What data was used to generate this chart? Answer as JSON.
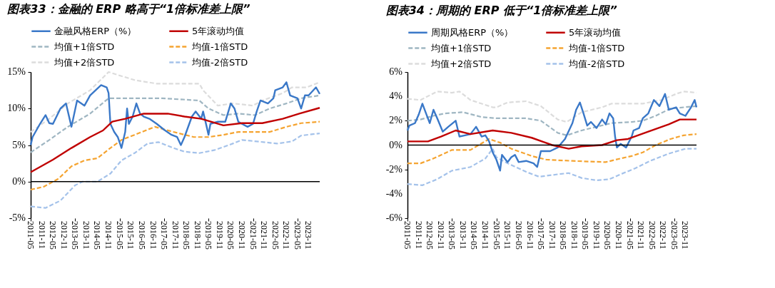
{
  "chart_data": [
    {
      "type": "line",
      "title": "图表33：金融的 ERP 略高于“1倍标准差上限”",
      "legend": "top",
      "grid": false,
      "xlim": [
        "2011-05",
        "2024-05"
      ],
      "xticks": [
        "2011-05",
        "2011-11",
        "2012-05",
        "2012-11",
        "2013-05",
        "2013-11",
        "2014-05",
        "2014-11",
        "2015-05",
        "2015-11",
        "2016-05",
        "2016-11",
        "2017-05",
        "2017-11",
        "2018-05",
        "2018-11",
        "2019-05",
        "2019-11",
        "2020-05",
        "2020-11",
        "2021-05",
        "2021-11",
        "2022-05",
        "2022-11",
        "2023-05",
        "2023-11"
      ],
      "ylim": [
        -5,
        15
      ],
      "yticks": [
        {
          "value": -5,
          "label": "-5%"
        },
        {
          "value": 0,
          "label": "0%"
        },
        {
          "value": 5,
          "label": "5%"
        },
        {
          "value": 10,
          "label": "10%"
        },
        {
          "value": 15,
          "label": "15%"
        }
      ],
      "ref_lines": [
        {
          "axis": "y",
          "value": 0,
          "color": "#000000"
        }
      ],
      "series": [
        {
          "name": "金融风格ERP（%）",
          "color": "#3a78c8",
          "line_style": "solid",
          "x": [
            "2011-05",
            "2011-06",
            "2011-10",
            "2012-01",
            "2012-03",
            "2012-05",
            "2012-09",
            "2012-12",
            "2013-03",
            "2013-06",
            "2013-10",
            "2014-01",
            "2014-04",
            "2014-07",
            "2014-10",
            "2014-11",
            "2014-12",
            "2015-02",
            "2015-04",
            "2015-06",
            "2015-08",
            "2015-09",
            "2015-10",
            "2015-12",
            "2016-02",
            "2016-04",
            "2016-06",
            "2016-09",
            "2017-01",
            "2017-05",
            "2017-09",
            "2017-12",
            "2018-02",
            "2018-04",
            "2018-08",
            "2018-10",
            "2019-01",
            "2019-02",
            "2019-04",
            "2019-05",
            "2019-06",
            "2019-10",
            "2020-02",
            "2020-05",
            "2020-07",
            "2020-09",
            "2020-11",
            "2021-02",
            "2021-05",
            "2021-07",
            "2021-09",
            "2022-01",
            "2022-04",
            "2022-05",
            "2022-09",
            "2022-11",
            "2023-01",
            "2023-05",
            "2023-07",
            "2023-09",
            "2023-11",
            "2024-03",
            "2024-05"
          ],
          "values": [
            5.0,
            6.1,
            7.9,
            9.1,
            8.0,
            7.9,
            10.0,
            10.7,
            7.5,
            11.1,
            10.4,
            11.8,
            12.5,
            13.2,
            12.9,
            12.1,
            7.9,
            6.8,
            6.1,
            4.6,
            6.8,
            10.0,
            7.9,
            8.9,
            10.7,
            9.3,
            8.9,
            8.6,
            7.9,
            7.1,
            6.4,
            6.1,
            5.0,
            6.1,
            8.9,
            9.6,
            8.6,
            9.6,
            7.5,
            6.4,
            7.9,
            8.2,
            8.2,
            10.7,
            10.0,
            8.2,
            7.9,
            7.5,
            7.9,
            9.6,
            11.1,
            10.7,
            11.4,
            12.5,
            12.9,
            13.6,
            11.8,
            11.4,
            10.0,
            11.8,
            11.8,
            12.9,
            12.0
          ]
        },
        {
          "name": "5年滚动均值",
          "color": "#c00000",
          "line_style": "solid",
          "x": [
            "2011-05",
            "2012-05",
            "2013-03",
            "2014-01",
            "2014-08",
            "2015-01",
            "2015-08",
            "2016-06",
            "2017-07",
            "2018-04",
            "2019-01",
            "2020-01",
            "2020-11",
            "2021-10",
            "2022-09",
            "2023-06",
            "2024-05"
          ],
          "values": [
            1.3,
            3.0,
            4.6,
            6.1,
            7.0,
            8.2,
            8.6,
            9.3,
            9.3,
            8.9,
            8.6,
            7.7,
            8.0,
            8.0,
            8.6,
            9.3,
            10.1
          ]
        },
        {
          "name": "均值+1倍STD",
          "color": "#9fb6c2",
          "line_style": "dashed",
          "x": [
            "2011-05",
            "2012-03",
            "2013-01",
            "2014-01",
            "2014-11",
            "2016-01",
            "2017-04",
            "2018-12",
            "2019-05",
            "2020-01",
            "2020-09",
            "2021-06",
            "2022-02",
            "2022-11",
            "2023-07",
            "2024-05"
          ],
          "values": [
            4.0,
            5.7,
            7.5,
            9.3,
            11.4,
            11.4,
            11.4,
            11.1,
            10.0,
            9.1,
            9.3,
            9.1,
            10.0,
            10.7,
            11.4,
            11.8
          ]
        },
        {
          "name": "均值-1倍STD",
          "color": "#f5a431",
          "line_style": "dashed",
          "x": [
            "2011-05",
            "2011-12",
            "2012-08",
            "2013-03",
            "2013-10",
            "2014-05",
            "2014-12",
            "2015-06",
            "2016-01",
            "2016-12",
            "2017-10",
            "2018-09",
            "2019-05",
            "2020-01",
            "2020-09",
            "2021-05",
            "2022-02",
            "2022-11",
            "2023-07",
            "2024-05"
          ],
          "values": [
            -1.1,
            -0.7,
            0.4,
            2.1,
            2.9,
            3.2,
            4.6,
            5.7,
            6.4,
            7.5,
            6.8,
            6.1,
            6.1,
            6.4,
            6.8,
            6.8,
            6.8,
            7.5,
            8.0,
            8.2
          ]
        },
        {
          "name": "均值+2倍STD",
          "color": "#dcdcdc",
          "line_style": "dashed",
          "x": [
            "2011-05",
            "2012-03",
            "2013-01",
            "2014-01",
            "2014-11",
            "2015-04",
            "2016-01",
            "2017-01",
            "2018-12",
            "2019-02",
            "2019-10",
            "2020-06",
            "2021-05",
            "2021-10",
            "2022-09",
            "2023-02",
            "2023-10",
            "2024-05"
          ],
          "values": [
            6.8,
            8.6,
            10.7,
            12.5,
            15.0,
            14.6,
            13.9,
            13.4,
            13.4,
            12.5,
            10.4,
            10.7,
            10.4,
            11.1,
            12.1,
            12.9,
            12.9,
            13.6
          ]
        },
        {
          "name": "均值-2倍STD",
          "color": "#a4c2ea",
          "line_style": "dashed",
          "x": [
            "2011-05",
            "2012-01",
            "2012-09",
            "2013-05",
            "2013-09",
            "2014-05",
            "2014-12",
            "2015-06",
            "2016-01",
            "2016-08",
            "2017-02",
            "2017-10",
            "2018-04",
            "2018-12",
            "2019-08",
            "2020-04",
            "2020-11",
            "2021-07",
            "2022-06",
            "2023-02",
            "2023-07",
            "2024-05"
          ],
          "values": [
            -3.4,
            -3.6,
            -2.6,
            -0.5,
            0.0,
            0.0,
            1.1,
            2.9,
            3.9,
            5.2,
            5.4,
            4.6,
            4.1,
            3.9,
            4.3,
            5.0,
            5.7,
            5.5,
            5.2,
            5.5,
            6.3,
            6.6
          ]
        }
      ]
    },
    {
      "type": "line",
      "title": "图表34：周期的 ERP 低于“1倍标准差上限”",
      "legend": "top",
      "grid": false,
      "xlim": [
        "2011-05",
        "2024-05"
      ],
      "xticks": [
        "2011-05",
        "2011-11",
        "2012-05",
        "2012-11",
        "2013-05",
        "2013-11",
        "2014-05",
        "2014-11",
        "2015-05",
        "2015-11",
        "2016-05",
        "2016-11",
        "2017-05",
        "2017-11",
        "2018-05",
        "2018-11",
        "2019-05",
        "2019-11",
        "2020-05",
        "2020-11",
        "2021-05",
        "2021-11",
        "2022-05",
        "2022-11",
        "2023-05",
        "2023-11"
      ],
      "ylim": [
        -6,
        6
      ],
      "yticks": [
        {
          "value": -6,
          "label": "-6%"
        },
        {
          "value": -4,
          "label": "-4%"
        },
        {
          "value": -2,
          "label": "-2%"
        },
        {
          "value": 0,
          "label": "0%"
        },
        {
          "value": 2,
          "label": "2%"
        },
        {
          "value": 4,
          "label": "4%"
        },
        {
          "value": 6,
          "label": "6%"
        }
      ],
      "ref_lines": [
        {
          "axis": "y",
          "value": 0,
          "color": "#000000"
        }
      ],
      "series": [
        {
          "name": "周期风格ERP（%）",
          "color": "#3a78c8",
          "line_style": "solid",
          "x": [
            "2011-05",
            "2011-06",
            "2011-09",
            "2011-11",
            "2012-01",
            "2012-03",
            "2012-05",
            "2012-07",
            "2012-09",
            "2012-12",
            "2013-03",
            "2013-07",
            "2013-09",
            "2013-12",
            "2014-03",
            "2014-06",
            "2014-09",
            "2014-11",
            "2015-01",
            "2015-03",
            "2015-05",
            "2015-07",
            "2015-08",
            "2015-11",
            "2016-01",
            "2016-03",
            "2016-05",
            "2016-09",
            "2017-01",
            "2017-03",
            "2017-05",
            "2017-10",
            "2018-02",
            "2018-06",
            "2018-10",
            "2018-12",
            "2019-02",
            "2019-04",
            "2019-06",
            "2019-08",
            "2019-11",
            "2020-02",
            "2020-04",
            "2020-06",
            "2020-08",
            "2020-09",
            "2020-10",
            "2020-12",
            "2021-03",
            "2021-06",
            "2021-07",
            "2021-10",
            "2021-12",
            "2022-03",
            "2022-06",
            "2022-09",
            "2022-12",
            "2023-02",
            "2023-06",
            "2023-08",
            "2023-11",
            "2024-02",
            "2024-04",
            "2024-05"
          ],
          "values": [
            1.2,
            1.6,
            1.8,
            2.5,
            3.4,
            2.6,
            1.8,
            2.9,
            2.2,
            1.1,
            1.5,
            2.0,
            0.7,
            0.8,
            0.9,
            1.5,
            0.7,
            0.8,
            0.3,
            -0.6,
            -1.2,
            -2.1,
            -0.8,
            -1.4,
            -1.0,
            -0.8,
            -1.4,
            -1.3,
            -1.5,
            -1.8,
            -0.5,
            -0.5,
            -0.2,
            0.5,
            1.8,
            2.9,
            3.5,
            2.6,
            1.6,
            1.9,
            1.4,
            2.1,
            1.7,
            2.6,
            2.2,
            0.7,
            -0.2,
            0.1,
            -0.2,
            0.7,
            1.2,
            1.4,
            2.2,
            2.6,
            3.7,
            3.2,
            4.2,
            2.9,
            3.1,
            2.6,
            2.4,
            3.1,
            3.7,
            3.1
          ]
        },
        {
          "name": "5年滚动均值",
          "color": "#c00000",
          "line_style": "solid",
          "x": [
            "2011-05",
            "2012-04",
            "2012-11",
            "2013-07",
            "2014-03",
            "2015-03",
            "2016-01",
            "2016-12",
            "2017-11",
            "2018-08",
            "2019-03",
            "2020-02",
            "2020-10",
            "2021-04",
            "2022-03",
            "2023-02",
            "2023-08",
            "2024-05"
          ],
          "values": [
            0.3,
            0.3,
            0.7,
            1.2,
            0.9,
            1.2,
            1.0,
            0.6,
            0.0,
            -0.3,
            -0.1,
            0.0,
            0.4,
            0.5,
            1.1,
            1.7,
            2.1,
            2.1
          ]
        },
        {
          "name": "均值+1倍STD",
          "color": "#9fb6c2",
          "line_style": "dashed",
          "x": [
            "2011-05",
            "2011-12",
            "2012-07",
            "2013-01",
            "2013-11",
            "2014-09",
            "2015-05",
            "2016-09",
            "2017-05",
            "2018-02",
            "2018-07",
            "2019-03",
            "2019-11",
            "2020-07",
            "2021-06",
            "2021-12",
            "2022-07",
            "2023-03",
            "2024-05"
          ],
          "values": [
            2.0,
            2.1,
            2.4,
            2.6,
            2.7,
            2.3,
            2.2,
            2.2,
            2.0,
            1.0,
            0.8,
            1.2,
            1.5,
            1.8,
            1.9,
            2.0,
            2.4,
            3.0,
            3.2
          ]
        },
        {
          "name": "均值-1倍STD",
          "color": "#f5a431",
          "line_style": "dashed",
          "x": [
            "2011-05",
            "2011-12",
            "2012-07",
            "2013-05",
            "2014-03",
            "2015-01",
            "2015-07",
            "2016-01",
            "2016-12",
            "2017-08",
            "2018-10",
            "2020-04",
            "2020-12",
            "2021-06",
            "2021-12",
            "2022-07",
            "2023-03",
            "2023-10",
            "2024-05"
          ],
          "values": [
            -1.5,
            -1.5,
            -1.1,
            -0.4,
            -0.4,
            0.5,
            0.2,
            -0.3,
            -0.9,
            -1.2,
            -1.3,
            -1.4,
            -1.1,
            -0.9,
            -0.6,
            0.0,
            0.5,
            0.8,
            0.9
          ]
        },
        {
          "name": "均值+2倍STD",
          "color": "#dcdcdc",
          "line_style": "dashed",
          "x": [
            "2011-05",
            "2011-12",
            "2012-09",
            "2013-05",
            "2013-09",
            "2014-03",
            "2015-03",
            "2015-05",
            "2015-11",
            "2016-09",
            "2017-05",
            "2018-02",
            "2018-07",
            "2019-03",
            "2020-02",
            "2020-07",
            "2021-12",
            "2022-10",
            "2023-06",
            "2023-10",
            "2024-05"
          ],
          "values": [
            3.8,
            3.7,
            4.4,
            4.3,
            4.4,
            3.7,
            3.1,
            3.1,
            3.5,
            3.6,
            3.2,
            2.1,
            1.9,
            2.7,
            3.1,
            3.4,
            3.4,
            3.7,
            4.2,
            4.4,
            4.3
          ]
        },
        {
          "name": "均值-2倍STD",
          "color": "#a4c2ea",
          "line_style": "dashed",
          "x": [
            "2011-05",
            "2012-01",
            "2012-09",
            "2013-05",
            "2014-03",
            "2014-11",
            "2015-03",
            "2015-05",
            "2015-11",
            "2016-09",
            "2017-04",
            "2018-02",
            "2018-08",
            "2019-03",
            "2019-11",
            "2020-06",
            "2020-12",
            "2021-08",
            "2022-04",
            "2023-02",
            "2023-11",
            "2024-05"
          ],
          "values": [
            -3.2,
            -3.3,
            -2.8,
            -2.1,
            -1.8,
            -1.1,
            -0.3,
            -1.0,
            -1.5,
            -2.2,
            -2.6,
            -2.4,
            -2.3,
            -2.7,
            -2.9,
            -2.8,
            -2.4,
            -1.9,
            -1.3,
            -0.7,
            -0.3,
            -0.3
          ]
        }
      ]
    }
  ]
}
